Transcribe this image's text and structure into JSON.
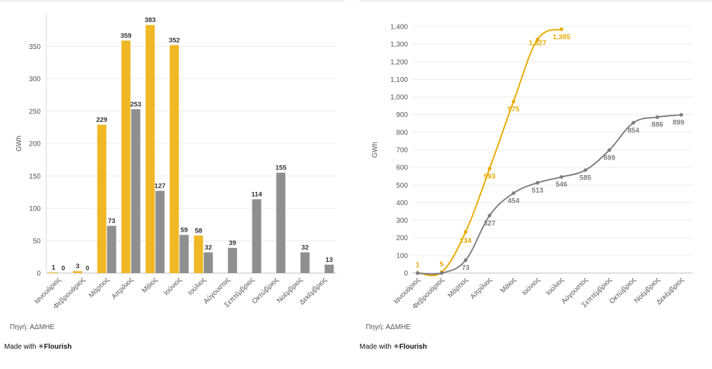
{
  "footer": {
    "source_left": "Πηγή: ΑΔΜΗΕ",
    "source_right": "Πηγή: ΑΔΜΗΕ",
    "made_with_prefix": "Made with",
    "brand": "✳Flourish"
  },
  "chart_data": [
    {
      "type": "bar",
      "ylabel": "GWh",
      "ylim": [
        0,
        400
      ],
      "yticks": [
        0,
        50,
        100,
        150,
        200,
        250,
        300,
        350
      ],
      "grid": true,
      "categories": [
        "Ιανουάριος",
        "Φεβρουάριος",
        "Μάρτιος",
        "Απρίλιος",
        "Μάιος",
        "Ιούνιος",
        "Ιούλιος",
        "Αύγουστος",
        "Σεπτέμβριος",
        "Οκτώβριος",
        "Νοέμβριος",
        "Δεκέμβριος"
      ],
      "series": [
        {
          "name": "series-1",
          "color": "#f0b824",
          "values": [
            1,
            3,
            229,
            359,
            383,
            352,
            58,
            null,
            null,
            null,
            null,
            null
          ]
        },
        {
          "name": "series-2",
          "color": "#8f8f8f",
          "values": [
            0,
            0,
            73,
            253,
            127,
            59,
            32,
            39,
            114,
            155,
            32,
            13
          ]
        }
      ]
    },
    {
      "type": "line",
      "ylabel": "GWh",
      "ylim": [
        0,
        1400
      ],
      "yticks": [
        0,
        100,
        200,
        300,
        400,
        500,
        600,
        700,
        800,
        900,
        1000,
        1100,
        1200,
        1300,
        1400
      ],
      "ytick_labels": [
        "0",
        "100",
        "200",
        "300",
        "400",
        "500",
        "600",
        "700",
        "800",
        "900",
        "1,000",
        "1,100",
        "1,200",
        "1,300",
        "1,400"
      ],
      "grid": true,
      "categories": [
        "Ιανουάριος",
        "Φεβρουάριος",
        "Μάρτιος",
        "Απρίλιος",
        "Μάιος",
        "Ιούνιος",
        "Ιούλιος",
        "Αύγουστος",
        "Σεπτέμβριος",
        "Οκτώβριος",
        "Νοέμβριος",
        "Δεκέμβριος"
      ],
      "series": [
        {
          "name": "series-1",
          "color": "#e8ab00",
          "values": [
            1,
            5,
            234,
            593,
            975,
            1327,
            1385,
            null,
            null,
            null,
            null,
            null
          ],
          "labels": [
            "1",
            "5",
            "234",
            "593",
            "975",
            "1,327",
            "1,385",
            null,
            null,
            null,
            null,
            null
          ]
        },
        {
          "name": "series-2",
          "color": "#7f7f7f",
          "values": [
            0,
            0,
            73,
            327,
            454,
            513,
            546,
            585,
            699,
            854,
            886,
            899
          ],
          "labels": [
            null,
            null,
            "73",
            "327",
            "454",
            "513",
            "546",
            "585",
            "699",
            "854",
            "886",
            "899"
          ]
        }
      ]
    }
  ]
}
